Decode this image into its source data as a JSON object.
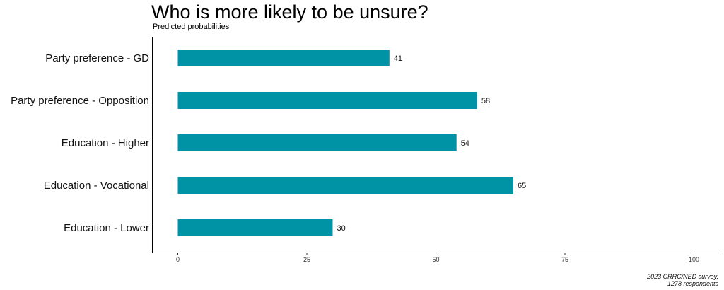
{
  "chart_data": {
    "type": "bar",
    "orientation": "horizontal",
    "title": "Who is more likely to be unsure?",
    "subtitle": "Predicted probabilities",
    "categories": [
      "Party preference  -  GD",
      "Party preference  -  Opposition",
      "Education  -  Higher",
      "Education  -  Vocational",
      "Education  -  Lower"
    ],
    "values": [
      41,
      58,
      54,
      65,
      30
    ],
    "value_labels": [
      "41",
      "58",
      "54",
      "65",
      "30"
    ],
    "xlim": [
      0,
      100
    ],
    "xticks": [
      0,
      25,
      50,
      75,
      100
    ],
    "xtick_labels": [
      "0",
      "25",
      "50",
      "75",
      "100"
    ],
    "xlabel": "",
    "ylabel": "",
    "grid": false,
    "legend": "none",
    "bar_color": "#0092A5",
    "caption": [
      "2023 CRRC/NED survey,",
      "1278 respondents"
    ]
  }
}
